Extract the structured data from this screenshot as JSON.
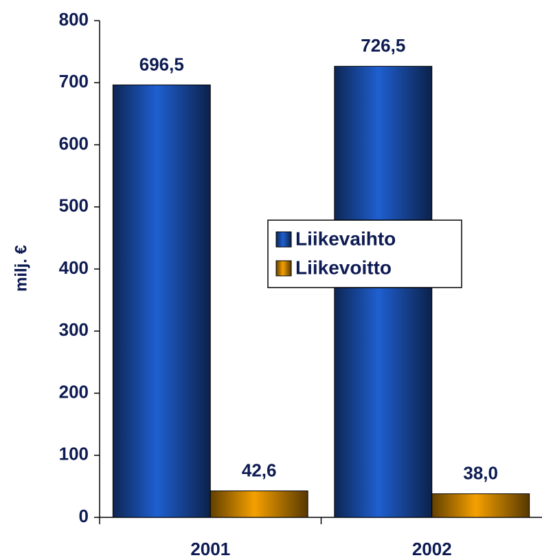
{
  "chart_data": {
    "type": "bar",
    "y_label": "milj. €",
    "categories": [
      "2001",
      "2002"
    ],
    "series": [
      {
        "name": "Liikevaihto",
        "color": "#1f5fd0",
        "values": [
          696.5,
          726.5
        ],
        "value_labels": [
          "696,5",
          "726,5"
        ]
      },
      {
        "name": "Liikevoitto",
        "color": "#f5a000",
        "values": [
          42.6,
          38.0
        ],
        "value_labels": [
          "42,6",
          "38,0"
        ]
      }
    ],
    "ylim": [
      0,
      800
    ],
    "yticks": [
      0,
      100,
      200,
      300,
      400,
      500,
      600,
      700,
      800
    ],
    "legend": "right"
  }
}
